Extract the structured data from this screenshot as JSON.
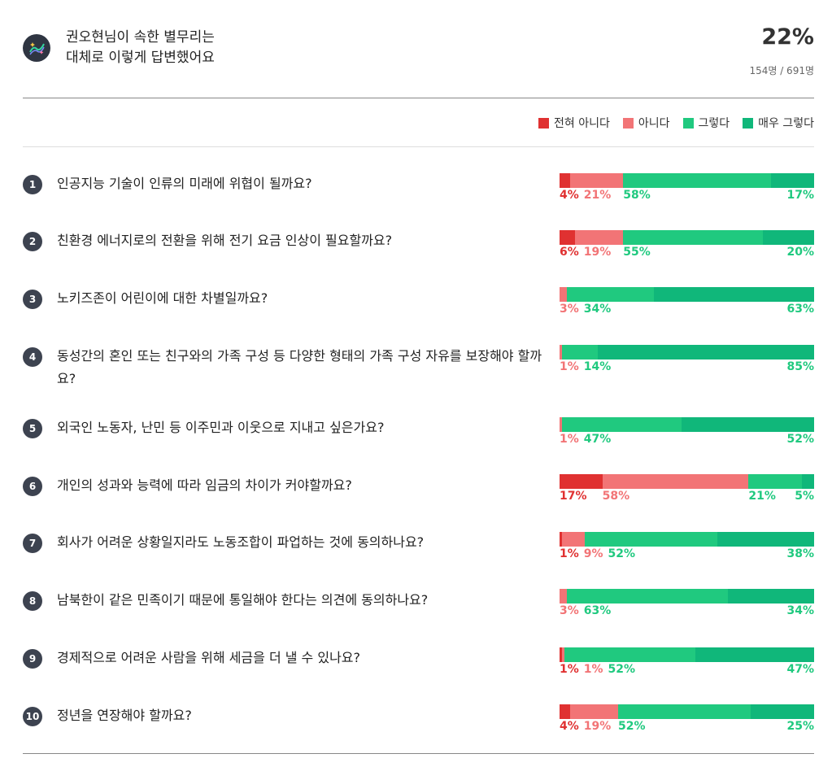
{
  "header": {
    "title_line1": "권오현님이 속한 별무리는",
    "title_line2": "대체로 이렇게 답변했어요",
    "percent": "22%",
    "count": "154명 / 691명"
  },
  "legend": [
    {
      "label": "전혀 아니다",
      "color": "#e03131"
    },
    {
      "label": "아니다",
      "color": "#f27476"
    },
    {
      "label": "그렇다",
      "color": "#20c97f"
    },
    {
      "label": "매우 그렇다",
      "color": "#10b77a"
    }
  ],
  "chart_data": {
    "type": "bar",
    "orientation": "horizontal-stacked-100",
    "series_names": [
      "전혀 아니다",
      "아니다",
      "그렇다",
      "매우 그렇다"
    ],
    "questions": [
      {
        "num": "1",
        "text": "인공지능 기술이 인류의 미래에 위협이 될까요?",
        "values": [
          4,
          21,
          58,
          17
        ],
        "labels": [
          "4%",
          "21%",
          "58%",
          "17%"
        ]
      },
      {
        "num": "2",
        "text": "친환경 에너지로의 전환을 위해 전기 요금 인상이 필요할까요?",
        "values": [
          6,
          19,
          55,
          20
        ],
        "labels": [
          "6%",
          "19%",
          "55%",
          "20%"
        ]
      },
      {
        "num": "3",
        "text": "노키즈존이 어린이에 대한 차별일까요?",
        "values": [
          0,
          3,
          34,
          63
        ],
        "labels": [
          "",
          "3%",
          "34%",
          "63%"
        ]
      },
      {
        "num": "4",
        "text": "동성간의 혼인 또는 친구와의 가족 구성 등 다양한 형태의 가족 구성 자유를 보장해야 할까요?",
        "values": [
          0,
          1,
          14,
          85
        ],
        "labels": [
          "",
          "1%",
          "14%",
          "85%"
        ]
      },
      {
        "num": "5",
        "text": "외국인 노동자, 난민 등 이주민과 이웃으로 지내고 싶은가요?",
        "values": [
          0,
          1,
          47,
          52
        ],
        "labels": [
          "",
          "1%",
          "47%",
          "52%"
        ]
      },
      {
        "num": "6",
        "text": "개인의 성과와 능력에 따라 임금의 차이가 커야할까요?",
        "values": [
          17,
          58,
          21,
          5
        ],
        "labels": [
          "17%",
          "58%",
          "21%",
          "5%"
        ]
      },
      {
        "num": "7",
        "text": "회사가 어려운 상황일지라도 노동조합이 파업하는 것에 동의하나요?",
        "values": [
          1,
          9,
          52,
          38
        ],
        "labels": [
          "1%",
          "9%",
          "52%",
          "38%"
        ]
      },
      {
        "num": "8",
        "text": "남북한이 같은 민족이기 때문에 통일해야 한다는 의견에 동의하나요?",
        "values": [
          0,
          3,
          63,
          34
        ],
        "labels": [
          "",
          "3%",
          "63%",
          "34%"
        ]
      },
      {
        "num": "9",
        "text": "경제적으로 어려운 사람을 위해 세금을 더 낼 수 있나요?",
        "values": [
          1,
          1,
          52,
          47
        ],
        "labels": [
          "1%",
          "1%",
          "52%",
          "47%"
        ]
      },
      {
        "num": "10",
        "text": "정년을 연장해야 할까요?",
        "values": [
          4,
          19,
          52,
          25
        ],
        "labels": [
          "4%",
          "19%",
          "52%",
          "25%"
        ]
      }
    ]
  }
}
